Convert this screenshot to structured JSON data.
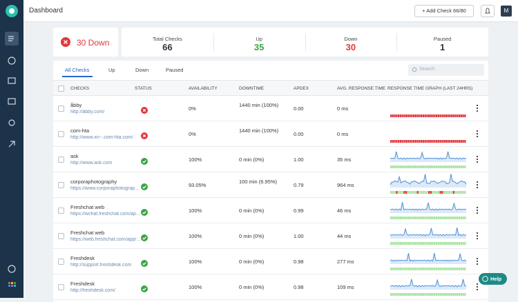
{
  "header": {
    "title": "Dashboard",
    "add_button": "+ Add Check 66/80",
    "avatar": "M"
  },
  "summary": {
    "down_badge": "30 Down",
    "stats": [
      {
        "label": "Total Checks",
        "value": 66,
        "color": "#333333"
      },
      {
        "label": "Up",
        "value": 35,
        "color": "#3aa447"
      },
      {
        "label": "Down",
        "value": 30,
        "color": "#e0383e"
      },
      {
        "label": "Paused",
        "value": 1,
        "color": "#333333"
      }
    ]
  },
  "tabs": [
    "All Checks",
    "Up",
    "Down",
    "Paused"
  ],
  "search_placeholder": "Search",
  "table": {
    "columns": [
      "CHECKS",
      "STATUS",
      "AVAILABILITY",
      "DOWNTIME",
      "APDEX",
      "AVG. RESPONSE TIME",
      "RESPONSE TIME GRAPH (LAST 24HRS)"
    ],
    "rows": [
      {
        "name": "ǻbby",
        "url": "http://ǻbby.com/",
        "status": "down",
        "availability": "0%",
        "downtime": "1440 min (100%)",
        "apdex": "0.00",
        "response": "0 ms"
      },
      {
        "name": "com-hta",
        "url": "http://www.xn--.com-hta.com/",
        "status": "down",
        "availability": "0%",
        "downtime": "1440 min (100%)",
        "apdex": "0.00",
        "response": "0 ms"
      },
      {
        "name": "ask",
        "url": "http://www.ask.com",
        "status": "up",
        "availability": "100%",
        "downtime": "0 min (0%)",
        "apdex": "1.00",
        "response": "35 ms"
      },
      {
        "name": "corporaphotography",
        "url": "https://www.corporaphotograp...",
        "status": "up",
        "availability": "93.05%",
        "downtime": "100 min (6.95%)",
        "apdex": "0.79",
        "response": "964 ms"
      },
      {
        "name": "Freshchat web",
        "url": "https://wchat.freshchat.com/ap...",
        "status": "up",
        "availability": "100%",
        "downtime": "0 min (0%)",
        "apdex": "0.99",
        "response": "46 ms"
      },
      {
        "name": "Freshchat web",
        "url": "https://web.freshchat.com/app/...",
        "status": "up",
        "availability": "100%",
        "downtime": "0 min (0%)",
        "apdex": "1.00",
        "response": "44 ms"
      },
      {
        "name": "Freshdesk",
        "url": "http://support.freshdesk.com",
        "status": "up",
        "availability": "100%",
        "downtime": "0 min (0%)",
        "apdex": "0.98",
        "response": "277 ms"
      },
      {
        "name": "Freshdesk",
        "url": "http://freshdesk.com/",
        "status": "up",
        "availability": "100%",
        "downtime": "0 min (0%)",
        "apdex": "0.98",
        "response": "109 ms"
      }
    ]
  },
  "help": "Help"
}
